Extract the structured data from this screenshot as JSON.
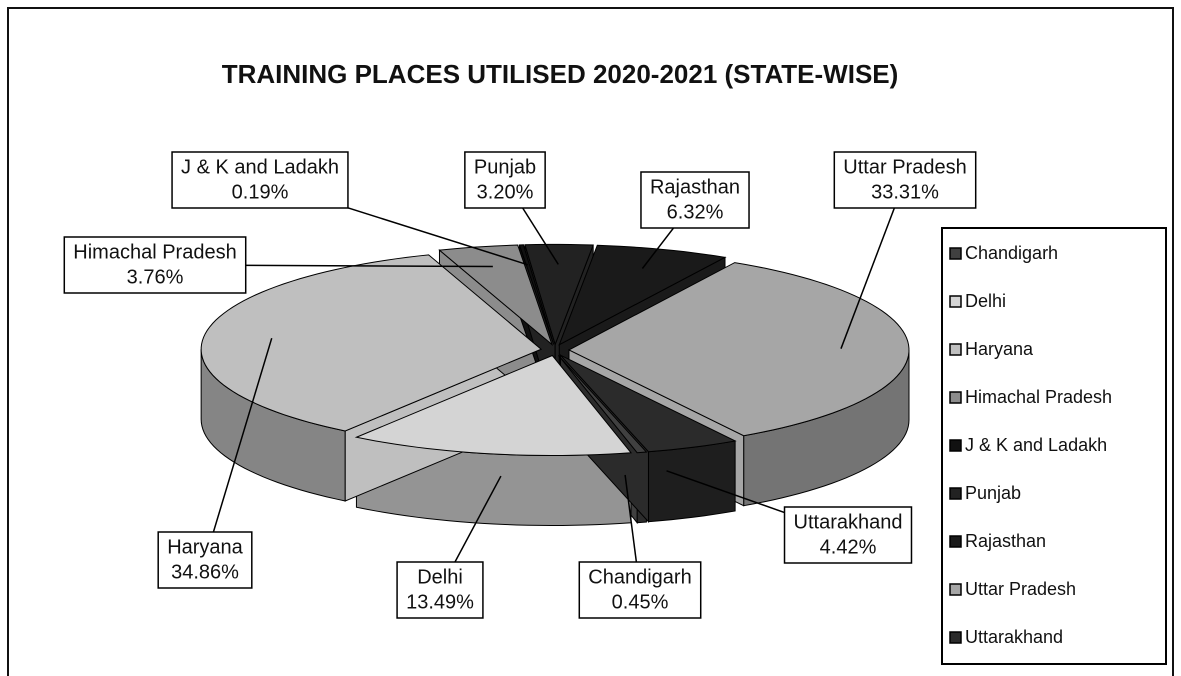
{
  "chart_data": {
    "type": "pie",
    "title": "TRAINING PLACES UTILISED 2020-2021 (STATE-WISE)",
    "categories": [
      "Chandigarh",
      "Delhi",
      "Haryana",
      "Himachal Pradesh",
      "J & K and Ladakh",
      "Punjab",
      "Rajasthan",
      "Uttar Pradesh",
      "Uttarakhand"
    ],
    "values": [
      0.45,
      13.49,
      34.86,
      3.76,
      0.19,
      3.2,
      6.32,
      33.31,
      4.42
    ],
    "value_labels": [
      "0.45%",
      "13.49%",
      "34.86%",
      "3.76%",
      "0.19%",
      "3.20%",
      "6.32%",
      "33.31%",
      "4.42%"
    ],
    "colors": [
      "#404040",
      "#d4d4d4",
      "#bfbfbf",
      "#8c8c8c",
      "#111111",
      "#222222",
      "#1a1a1a",
      "#a6a6a6",
      "#2b2b2b"
    ],
    "legend": "right"
  }
}
